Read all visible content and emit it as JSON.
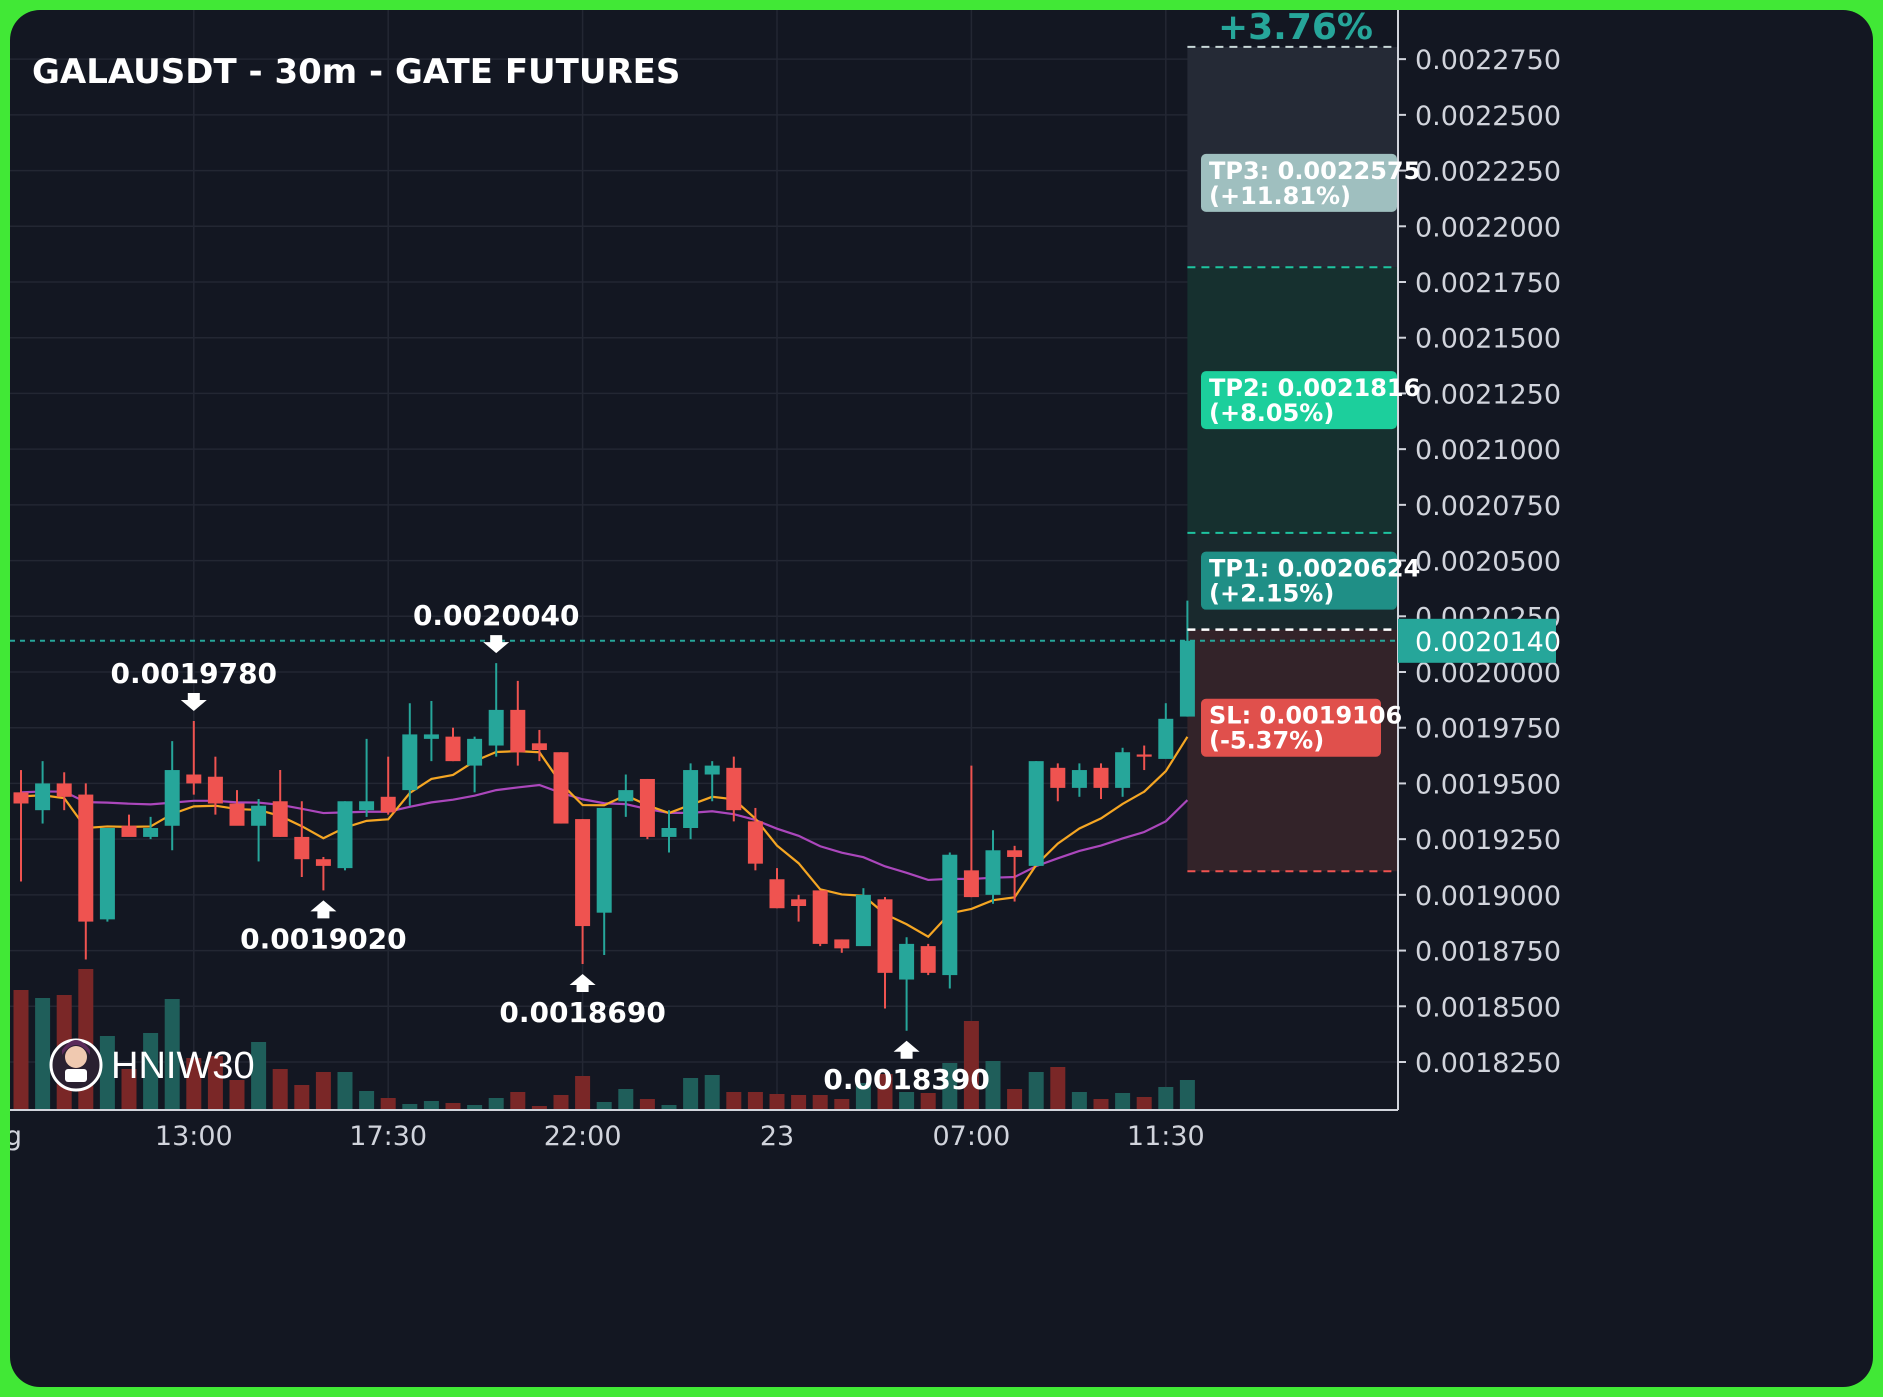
{
  "chart_data": {
    "type": "candlestick",
    "title": "GALAUSDT - 30m - GATE FUTURES",
    "ylim": [
      0.00181,
      0.0022875
    ],
    "y_ticks": [
      "0.0022750",
      "0.0022500",
      "0.0022250",
      "0.0022000",
      "0.0021750",
      "0.0021500",
      "0.0021250",
      "0.0021000",
      "0.0020750",
      "0.0020500",
      "0.0020250",
      "0.0020000",
      "0.0019750",
      "0.0019500",
      "0.0019250",
      "0.0019000",
      "0.0018750",
      "0.0018500",
      "0.0018250"
    ],
    "x_ticks": [
      {
        "label": "g",
        "i": -0.35
      },
      {
        "label": "13:00",
        "i": 8
      },
      {
        "label": "17:30",
        "i": 17
      },
      {
        "label": "22:00",
        "i": 26
      },
      {
        "label": "23",
        "i": 35
      },
      {
        "label": "07:00",
        "i": 44
      },
      {
        "label": "11:30",
        "i": 53
      }
    ],
    "candles": [
      {
        "o": 0.001946,
        "h": 0.001956,
        "l": 0.001906,
        "c": 0.001941,
        "v": 120
      },
      {
        "o": 0.001938,
        "h": 0.00196,
        "l": 0.001932,
        "c": 0.00195,
        "v": 112
      },
      {
        "o": 0.00195,
        "h": 0.001955,
        "l": 0.001938,
        "c": 0.001944,
        "v": 115
      },
      {
        "o": 0.001945,
        "h": 0.00195,
        "l": 0.001871,
        "c": 0.001888,
        "v": 141
      },
      {
        "o": 0.001889,
        "h": 0.00193,
        "l": 0.001888,
        "c": 0.00193,
        "v": 74
      },
      {
        "o": 0.001931,
        "h": 0.001936,
        "l": 0.001927,
        "c": 0.001926,
        "v": 41
      },
      {
        "o": 0.001926,
        "h": 0.001935,
        "l": 0.001925,
        "c": 0.00193,
        "v": 77
      },
      {
        "o": 0.001931,
        "h": 0.001969,
        "l": 0.00192,
        "c": 0.001956,
        "v": 111
      },
      {
        "o": 0.001954,
        "h": 0.001978,
        "l": 0.001945,
        "c": 0.00195,
        "v": 52
      },
      {
        "o": 0.001953,
        "h": 0.001962,
        "l": 0.001936,
        "c": 0.001941,
        "v": 54
      },
      {
        "o": 0.001941,
        "h": 0.001947,
        "l": 0.001933,
        "c": 0.001931,
        "v": 30
      },
      {
        "o": 0.001931,
        "h": 0.001943,
        "l": 0.001915,
        "c": 0.00194,
        "v": 68
      },
      {
        "o": 0.001942,
        "h": 0.001956,
        "l": 0.001926,
        "c": 0.001926,
        "v": 41
      },
      {
        "o": 0.001926,
        "h": 0.001942,
        "l": 0.001908,
        "c": 0.001916,
        "v": 25
      },
      {
        "o": 0.001916,
        "h": 0.001917,
        "l": 0.001902,
        "c": 0.001913,
        "v": 38
      },
      {
        "o": 0.001912,
        "h": 0.001942,
        "l": 0.001911,
        "c": 0.001942,
        "v": 38
      },
      {
        "o": 0.001938,
        "h": 0.00197,
        "l": 0.001935,
        "c": 0.001942,
        "v": 19
      },
      {
        "o": 0.001944,
        "h": 0.001962,
        "l": 0.001936,
        "c": 0.001937,
        "v": 12
      },
      {
        "o": 0.001947,
        "h": 0.001986,
        "l": 0.00194,
        "c": 0.001972,
        "v": 6
      },
      {
        "o": 0.00197,
        "h": 0.001987,
        "l": 0.00196,
        "c": 0.001972,
        "v": 9
      },
      {
        "o": 0.001971,
        "h": 0.001975,
        "l": 0.00196,
        "c": 0.00196,
        "v": 7
      },
      {
        "o": 0.001958,
        "h": 0.001971,
        "l": 0.001946,
        "c": 0.00197,
        "v": 5
      },
      {
        "o": 0.001967,
        "h": 0.002004,
        "l": 0.001962,
        "c": 0.001983,
        "v": 12
      },
      {
        "o": 0.001983,
        "h": 0.001996,
        "l": 0.001958,
        "c": 0.001964,
        "v": 18
      },
      {
        "o": 0.001968,
        "h": 0.001974,
        "l": 0.00196,
        "c": 0.001965,
        "v": 4
      },
      {
        "o": 0.001964,
        "h": 0.001964,
        "l": 0.001932,
        "c": 0.001932,
        "v": 15
      },
      {
        "o": 0.001934,
        "h": 0.001934,
        "l": 0.001869,
        "c": 0.001886,
        "v": 34
      },
      {
        "o": 0.001892,
        "h": 0.001938,
        "l": 0.001873,
        "c": 0.001939,
        "v": 8
      },
      {
        "o": 0.001942,
        "h": 0.001954,
        "l": 0.001935,
        "c": 0.001947,
        "v": 21
      },
      {
        "o": 0.001952,
        "h": 0.001952,
        "l": 0.001925,
        "c": 0.001926,
        "v": 11
      },
      {
        "o": 0.001926,
        "h": 0.001938,
        "l": 0.001919,
        "c": 0.00193,
        "v": 5
      },
      {
        "o": 0.00193,
        "h": 0.001959,
        "l": 0.001925,
        "c": 0.001956,
        "v": 32
      },
      {
        "o": 0.001954,
        "h": 0.00196,
        "l": 0.001942,
        "c": 0.001958,
        "v": 35
      },
      {
        "o": 0.001957,
        "h": 0.001962,
        "l": 0.001933,
        "c": 0.001938,
        "v": 18
      },
      {
        "o": 0.001933,
        "h": 0.001939,
        "l": 0.001911,
        "c": 0.001914,
        "v": 18
      },
      {
        "o": 0.001907,
        "h": 0.001912,
        "l": 0.001894,
        "c": 0.001894,
        "v": 16
      },
      {
        "o": 0.001898,
        "h": 0.0019,
        "l": 0.001888,
        "c": 0.001895,
        "v": 15
      },
      {
        "o": 0.001902,
        "h": 0.001902,
        "l": 0.001877,
        "c": 0.001878,
        "v": 15
      },
      {
        "o": 0.00188,
        "h": 0.00188,
        "l": 0.001874,
        "c": 0.001876,
        "v": 11
      },
      {
        "o": 0.001877,
        "h": 0.001903,
        "l": 0.001878,
        "c": 0.0019,
        "v": 27
      },
      {
        "o": 0.001898,
        "h": 0.001899,
        "l": 0.001849,
        "c": 0.001865,
        "v": 36
      },
      {
        "o": 0.001862,
        "h": 0.001881,
        "l": 0.001839,
        "c": 0.001878,
        "v": 18
      },
      {
        "o": 0.001877,
        "h": 0.001878,
        "l": 0.001864,
        "c": 0.001865,
        "v": 17
      },
      {
        "o": 0.001864,
        "h": 0.001919,
        "l": 0.001858,
        "c": 0.001918,
        "v": 47
      },
      {
        "o": 0.001911,
        "h": 0.001958,
        "l": 0.001899,
        "c": 0.001899,
        "v": 89
      },
      {
        "o": 0.0019,
        "h": 0.001929,
        "l": 0.001896,
        "c": 0.00192,
        "v": 49
      },
      {
        "o": 0.00192,
        "h": 0.001922,
        "l": 0.001897,
        "c": 0.001917,
        "v": 21
      },
      {
        "o": 0.001913,
        "h": 0.00196,
        "l": 0.001914,
        "c": 0.00196,
        "v": 38
      },
      {
        "o": 0.001957,
        "h": 0.001959,
        "l": 0.001942,
        "c": 0.001948,
        "v": 43
      },
      {
        "o": 0.001948,
        "h": 0.001959,
        "l": 0.001944,
        "c": 0.001956,
        "v": 18
      },
      {
        "o": 0.001957,
        "h": 0.001959,
        "l": 0.001943,
        "c": 0.001948,
        "v": 11
      },
      {
        "o": 0.001948,
        "h": 0.001966,
        "l": 0.001944,
        "c": 0.001964,
        "v": 17
      },
      {
        "o": 0.001963,
        "h": 0.001967,
        "l": 0.001956,
        "c": 0.001962,
        "v": 13
      },
      {
        "o": 0.001961,
        "h": 0.001986,
        "l": 0.001962,
        "c": 0.001979,
        "v": 23
      },
      {
        "o": 0.00198,
        "h": 0.002032,
        "l": 0.00198,
        "c": 0.002014,
        "v": 30
      }
    ],
    "ema_fast": [
      0.0019442,
      0.0019447,
      0.0019434,
      0.00193,
      0.0019307,
      0.0019305,
      0.0019307,
      0.0019363,
      0.0019397,
      0.00194,
      0.0019385,
      0.0019381,
      0.0019354,
      0.0019308,
      0.0019254,
      0.0019302,
      0.0019332,
      0.0019339,
      0.0019457,
      0.001952,
      0.0019538,
      0.00196,
      0.0019641,
      0.0019645,
      0.001964,
      0.00195,
      0.0019403,
      0.0019402,
      0.0019447,
      0.0019402,
      0.0019367,
      0.0019404,
      0.001944,
      0.0019429,
      0.0019342,
      0.0019221,
      0.0019142,
      0.0019025,
      0.0019002,
      0.0018996,
      0.0018914,
      0.0018868,
      0.0018812,
      0.0018917,
      0.0018937,
      0.0018976,
      0.0018989,
      0.0019134,
      0.001923,
      0.0019298,
      0.0019343,
      0.0019408,
      0.0019463,
      0.0019555,
      0.0019709
    ],
    "ema_slow": [
      0.001946,
      0.0019464,
      0.0019463,
      0.0019416,
      0.0019414,
      0.0019409,
      0.0019406,
      0.0019414,
      0.0019422,
      0.0019422,
      0.0019415,
      0.0019414,
      0.0019404,
      0.0019386,
      0.0019367,
      0.001937,
      0.0019373,
      0.0019373,
      0.0019395,
      0.0019415,
      0.0019427,
      0.0019445,
      0.001947,
      0.0019482,
      0.0019493,
      0.0019458,
      0.0019429,
      0.0019411,
      0.0019407,
      0.0019385,
      0.0019368,
      0.0019368,
      0.0019375,
      0.0019362,
      0.0019336,
      0.0019297,
      0.0019265,
      0.0019218,
      0.0019189,
      0.0019169,
      0.0019128,
      0.0019099,
      0.0019067,
      0.0019072,
      0.0019071,
      0.0019077,
      0.001908,
      0.0019129,
      0.0019164,
      0.0019197,
      0.0019221,
      0.0019253,
      0.0019282,
      0.001933,
      0.0019425
    ],
    "annotations": [
      {
        "text": "0.0019780",
        "i": 8,
        "price": 0.001978,
        "dir": "down"
      },
      {
        "text": "0.0020040",
        "i": 22,
        "price": 0.002004,
        "dir": "down"
      },
      {
        "text": "0.0019020",
        "i": 14,
        "price": 0.001902,
        "dir": "up"
      },
      {
        "text": "0.0018690",
        "i": 26,
        "price": 0.001869,
        "dir": "up"
      },
      {
        "text": "0.0018390",
        "i": 41,
        "price": 0.001839,
        "dir": "up"
      }
    ],
    "levels": {
      "entry": 0.002019,
      "current": 0.002014,
      "current_label": "0.0020140",
      "tp1": 0.0020624,
      "tp1_line1": "TP1: 0.0020624",
      "tp1_line2": "(+2.15%)",
      "tp2": 0.0021816,
      "tp2_line1": "TP2: 0.0021816",
      "tp2_line2": "(+8.05%)",
      "tp3": 0.0022575,
      "tp3_line1": "TP3: 0.0022575",
      "tp3_line2": "(+11.81%)",
      "sl": 0.0019106,
      "sl_line1": "SL: 0.0019106",
      "sl_line2": "(-5.37%)",
      "progress_label": "+3.76%"
    },
    "colors": {
      "up": "#26a69a",
      "down": "#ef5350",
      "ema_fast": "#f5a623",
      "ema_slow": "#ab47bc",
      "tp1_box": "#1f8f86",
      "tp2_box": "#1ccf9c",
      "tp3_box": "#9fbfbf",
      "sl_box": "#e0504c"
    },
    "watermark": "HNIW30"
  }
}
